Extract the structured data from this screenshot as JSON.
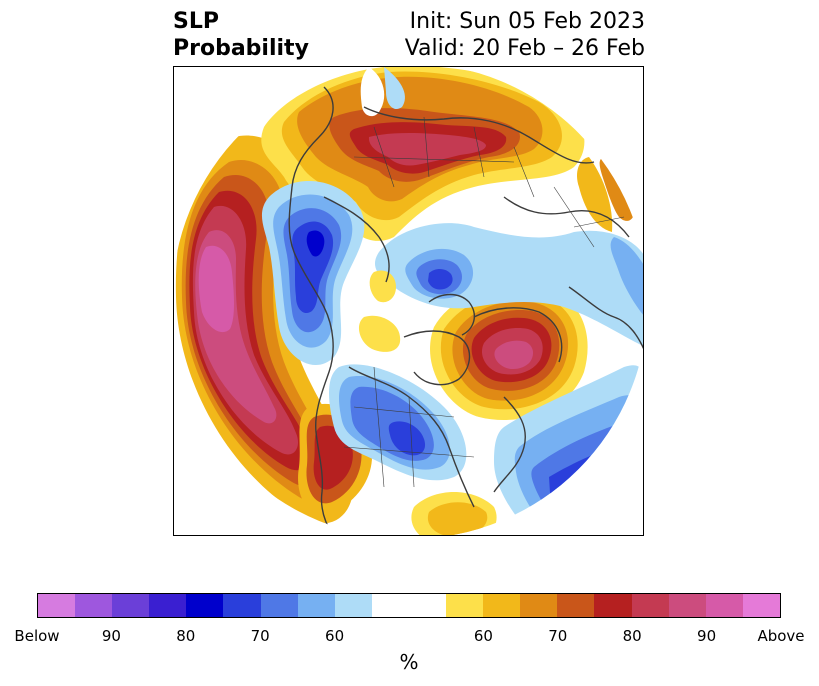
{
  "title": {
    "left_line1": "SLP",
    "left_line2": "Probability",
    "right_line1": "Init: Sun 05 Feb 2023",
    "right_line2": "Valid: 20 Feb – 26 Feb"
  },
  "colorbar": {
    "colors": [
      "#d67be0",
      "#9e57de",
      "#6b3fd8",
      "#3a1fd1",
      "#0000cc",
      "#2a3fdb",
      "#4f78e6",
      "#76b0f2",
      "#aedcf7",
      "#ffffff",
      "#ffffff",
      "#fde04a",
      "#f2b81a",
      "#e08a15",
      "#c9561a",
      "#b52020",
      "#c43a52",
      "#cc4c7e",
      "#d65aa8",
      "#e57ad8"
    ],
    "tick_labels": [
      "Below",
      "90",
      "80",
      "70",
      "60",
      "60",
      "70",
      "80",
      "90",
      "Above"
    ],
    "unit_label": "%"
  },
  "map": {
    "projection": "north-polar-stereographic",
    "field": "sea level pressure probability"
  }
}
